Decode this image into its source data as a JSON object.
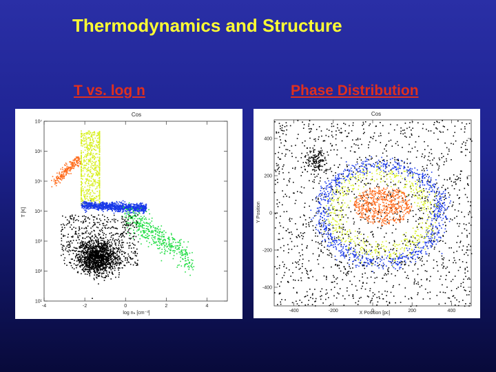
{
  "slide": {
    "title": "Thermodynamics and Structure",
    "left_heading": "T  vs.  log n",
    "right_heading": "Phase Distribution"
  },
  "colors": {
    "title": "#ffff33",
    "heading": "#e0301e",
    "hot_phase": "#ff6a1a",
    "warm_hot_phase": "#d8f020",
    "warm_phase": "#1838e8",
    "cool_dense_phase": "#22dd44",
    "cold_phase": "#000000"
  },
  "chart_data": [
    {
      "type": "scatter",
      "title": "Cos",
      "xlabel": "log nₕ [cm⁻³]",
      "ylabel": "T [K]",
      "xlim": [
        -4,
        5
      ],
      "ylim": [
        1,
        7
      ],
      "y_scale": "log",
      "x_ticks": [
        "-4",
        "-2",
        "0",
        "2",
        "4"
      ],
      "y_ticks": [
        "10¹",
        "10²",
        "10³",
        "10⁴",
        "10⁵",
        "10⁶",
        "10⁷"
      ],
      "series": [
        {
          "color": "#ff6a1a",
          "region": "line",
          "x": [
            -3.5,
            -2.3
          ],
          "logT": [
            5.0,
            5.75
          ],
          "count": 200
        },
        {
          "color": "#d8f020",
          "region": "box",
          "x": [
            -2.2,
            -1.3
          ],
          "logT": [
            4.15,
            6.7
          ],
          "count": 650
        },
        {
          "color": "#1838e8",
          "region": "band",
          "x": [
            -2.2,
            1.0
          ],
          "logT": [
            3.95,
            4.3
          ],
          "count": 900
        },
        {
          "color": "#22dd44",
          "region": "line",
          "x": [
            0.0,
            3.2
          ],
          "logT": [
            3.9,
            2.4
          ],
          "count": 450
        },
        {
          "color": "#000000",
          "region": "blob",
          "x": [
            -3.5,
            0.5
          ],
          "logT": [
            1.8,
            3.8
          ],
          "count": 1800
        }
      ]
    },
    {
      "type": "scatter",
      "title": "Cos",
      "xlabel": "X Position [pc]",
      "ylabel": "Y Position",
      "xlim": [
        -500,
        500
      ],
      "ylim": [
        -500,
        500
      ],
      "x_ticks": [
        "-400",
        "-200",
        "0",
        "200",
        "400"
      ],
      "y_ticks": [
        "-400",
        "-200",
        "0",
        "200",
        "400"
      ],
      "series": [
        {
          "color": "#000000",
          "region": "field",
          "count": 1600
        },
        {
          "color": "#1838e8",
          "region": "ring",
          "center": [
            40,
            0
          ],
          "radius": 300,
          "count": 900
        },
        {
          "color": "#d8f020",
          "region": "ring",
          "center": [
            40,
            0
          ],
          "radius": 240,
          "count": 500
        },
        {
          "color": "#ff6a1a",
          "region": "disc",
          "center": [
            50,
            40
          ],
          "radius": 140,
          "count": 550
        }
      ]
    }
  ]
}
